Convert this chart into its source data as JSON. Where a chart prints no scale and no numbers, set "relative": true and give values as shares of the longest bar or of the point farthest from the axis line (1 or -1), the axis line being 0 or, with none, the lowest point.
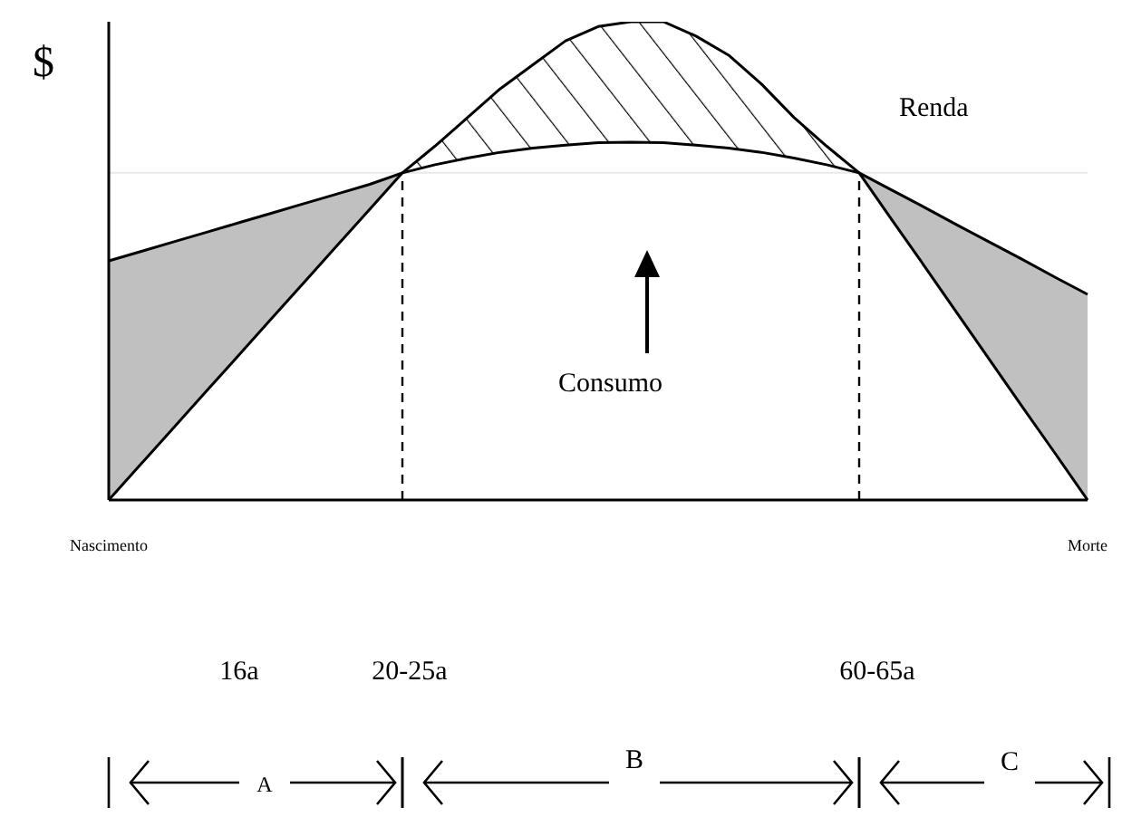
{
  "chart_data": {
    "type": "line",
    "relative": true,
    "ylabel": "$",
    "categories": [
      "Nascimento",
      null,
      null,
      null,
      null,
      null,
      null,
      null,
      null,
      null,
      null,
      null,
      null,
      null,
      null,
      null,
      null,
      null,
      null,
      null,
      null,
      null,
      null,
      null,
      null,
      null,
      null,
      null,
      null,
      null,
      "Morte"
    ],
    "series": [
      {
        "name": "Renda",
        "color": "#000000",
        "values": [
          0,
          0.076,
          0.152,
          0.228,
          0.304,
          0.38,
          0.456,
          0.532,
          0.608,
          0.684,
          0.74,
          0.8,
          0.86,
          0.91,
          0.96,
          0.99,
          1,
          1,
          0.97,
          0.93,
          0.87,
          0.8,
          0.74,
          0.684,
          0.586,
          0.489,
          0.391,
          0.293,
          0.195,
          0.098,
          0
        ]
      },
      {
        "name": "Consumo",
        "color": "#000000",
        "values": [
          0.5,
          0.52,
          0.54,
          0.56,
          0.58,
          0.6,
          0.62,
          0.64,
          0.66,
          0.684,
          0.701,
          0.715,
          0.727,
          0.736,
          0.742,
          0.747,
          0.748,
          0.747,
          0.742,
          0.736,
          0.727,
          0.715,
          0.701,
          0.684,
          0.648,
          0.612,
          0.575,
          0.539,
          0.503,
          0.466,
          0.43
        ]
      }
    ],
    "ref_lines": [
      {
        "axis": "y",
        "value": 0.684,
        "color": "#e8e8e8"
      }
    ],
    "annotations": [
      "16a",
      "20-25a",
      "60-65a",
      "A",
      "B",
      "C"
    ],
    "legend": false,
    "grid": false,
    "marker": "none",
    "line_style": "solid"
  }
}
